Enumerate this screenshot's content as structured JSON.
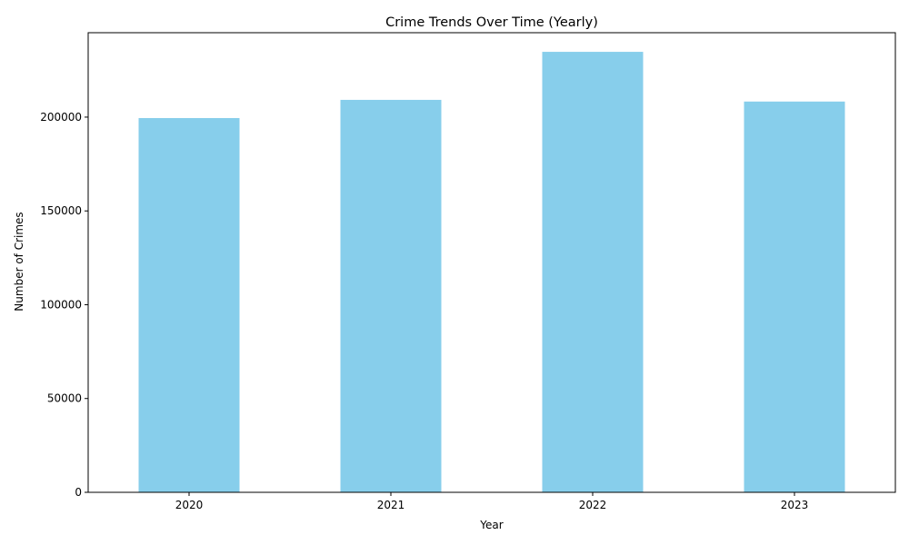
{
  "chart_data": {
    "type": "bar",
    "title": "Crime Trends Over Time (Yearly)",
    "xlabel": "Year",
    "ylabel": "Number of Crimes",
    "categories": [
      "2020",
      "2021",
      "2022",
      "2023"
    ],
    "values": [
      199500,
      209200,
      234800,
      208300
    ],
    "ylim": [
      0,
      245000
    ],
    "yticks": [
      0,
      50000,
      100000,
      150000,
      200000
    ],
    "grid": false,
    "bar_color": "#87ceeb",
    "axis_color": "#000000"
  }
}
